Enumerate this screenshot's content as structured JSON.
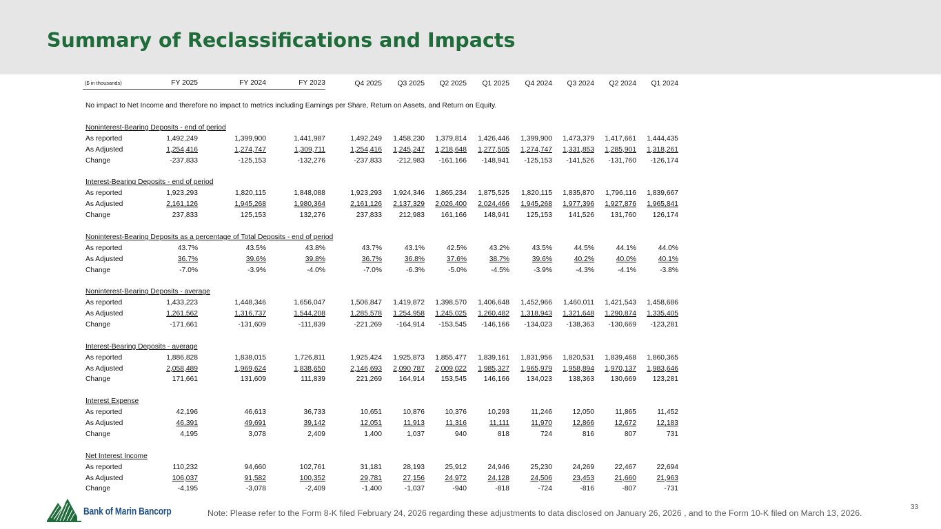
{
  "title": "Summary of Reclassifications and Impacts",
  "units": "($ in thousands)",
  "columns": [
    "FY 2025",
    "FY 2024",
    "FY 2023",
    "Q4 2025",
    "Q3 2025",
    "Q2 2025",
    "Q1 2025",
    "Q4 2024",
    "Q3 2024",
    "Q2 2024",
    "Q1 2024"
  ],
  "note_line": "No impact to Net Income and therefore no impact to metrics including Earnings per Share, Return on Assets, and Return on Equity.",
  "sections": [
    {
      "title": "Noninterest-Bearing Deposits - end of period",
      "rows": [
        {
          "label": "As reported",
          "values": [
            "1,492,249",
            "1,399,900",
            "1,441,987",
            "1,492,249",
            "1,458,230",
            "1,379,814",
            "1,426,446",
            "1,399,900",
            "1,473,379",
            "1,417,661",
            "1,444,435"
          ]
        },
        {
          "label": "As Adjusted",
          "values": [
            "1,254,416",
            "1,274,747",
            "1,309,711",
            "1,254,416",
            "1,245,247",
            "1,218,648",
            "1,277,505",
            "1,274,747",
            "1,331,853",
            "1,285,901",
            "1,318,261"
          ]
        },
        {
          "label": "Change",
          "values": [
            "-237,833",
            "-125,153",
            "-132,276",
            "-237,833",
            "-212,983",
            "-161,166",
            "-148,941",
            "-125,153",
            "-141,526",
            "-131,760",
            "-126,174"
          ]
        }
      ]
    },
    {
      "title": "Interest-Bearing Deposits - end of period",
      "rows": [
        {
          "label": "As reported",
          "values": [
            "1,923,293",
            "1,820,115",
            "1,848,088",
            "1,923,293",
            "1,924,346",
            "1,865,234",
            "1,875,525",
            "1,820,115",
            "1,835,870",
            "1,796,116",
            "1,839,667"
          ]
        },
        {
          "label": "As Adjusted",
          "values": [
            "2,161,126",
            "1,945,268",
            "1,980,364",
            "2,161,126",
            "2,137,329",
            "2,026,400",
            "2,024,466",
            "1,945,268",
            "1,977,396",
            "1,927,876",
            "1,965,841"
          ]
        },
        {
          "label": "Change",
          "values": [
            "237,833",
            "125,153",
            "132,276",
            "237,833",
            "212,983",
            "161,166",
            "148,941",
            "125,153",
            "141,526",
            "131,760",
            "126,174"
          ]
        }
      ]
    },
    {
      "title": "Noninterest-Bearing Deposits as a percentage of Total Deposits - end of period",
      "rows": [
        {
          "label": "As reported",
          "values": [
            "43.7%",
            "43.5%",
            "43.8%",
            "43.7%",
            "43.1%",
            "42.5%",
            "43.2%",
            "43.5%",
            "44.5%",
            "44.1%",
            "44.0%"
          ]
        },
        {
          "label": "As Adjusted",
          "values": [
            "36.7%",
            "39.6%",
            "39.8%",
            "36.7%",
            "36.8%",
            "37.6%",
            "38.7%",
            "39.6%",
            "40.2%",
            "40.0%",
            "40.1%"
          ]
        },
        {
          "label": "Change",
          "values": [
            "-7.0%",
            "-3.9%",
            "-4.0%",
            "-7.0%",
            "-6.3%",
            "-5.0%",
            "-4.5%",
            "-3.9%",
            "-4.3%",
            "-4.1%",
            "-3.8%"
          ]
        }
      ]
    },
    {
      "title": "Noninterest-Bearing Deposits - average",
      "rows": [
        {
          "label": "As reported",
          "values": [
            "1,433,223",
            "1,448,346",
            "1,656,047",
            "1,506,847",
            "1,419,872",
            "1,398,570",
            "1,406,648",
            "1,452,966",
            "1,460,011",
            "1,421,543",
            "1,458,686"
          ]
        },
        {
          "label": "As Adjusted",
          "values": [
            "1,261,562",
            "1,316,737",
            "1,544,208",
            "1,285,578",
            "1,254,958",
            "1,245,025",
            "1,260,482",
            "1,318,943",
            "1,321,648",
            "1,290,874",
            "1,335,405"
          ]
        },
        {
          "label": "Change",
          "values": [
            "-171,661",
            "-131,609",
            "-111,839",
            "-221,269",
            "-164,914",
            "-153,545",
            "-146,166",
            "-134,023",
            "-138,363",
            "-130,669",
            "-123,281"
          ]
        }
      ]
    },
    {
      "title": "Interest-Bearing Deposits - average",
      "rows": [
        {
          "label": "As reported",
          "values": [
            "1,886,828",
            "1,838,015",
            "1,726,811",
            "1,925,424",
            "1,925,873",
            "1,855,477",
            "1,839,161",
            "1,831,956",
            "1,820,531",
            "1,839,468",
            "1,860,365"
          ]
        },
        {
          "label": "As Adjusted",
          "values": [
            "2,058,489",
            "1,969,624",
            "1,838,650",
            "2,146,693",
            "2,090,787",
            "2,009,022",
            "1,985,327",
            "1,965,979",
            "1,958,894",
            "1,970,137",
            "1,983,646"
          ]
        },
        {
          "label": "Change",
          "values": [
            "171,661",
            "131,609",
            "111,839",
            "221,269",
            "164,914",
            "153,545",
            "146,166",
            "134,023",
            "138,363",
            "130,669",
            "123,281"
          ]
        }
      ]
    },
    {
      "title": "Interest Expense",
      "rows": [
        {
          "label": "As reported",
          "values": [
            "42,196",
            "46,613",
            "36,733",
            "10,651",
            "10,876",
            "10,376",
            "10,293",
            "11,246",
            "12,050",
            "11,865",
            "11,452"
          ]
        },
        {
          "label": "As Adjusted",
          "values": [
            "46,391",
            "49,691",
            "39,142",
            "12,051",
            "11,913",
            "11,316",
            "11,111",
            "11,970",
            "12,866",
            "12,672",
            "12,183"
          ]
        },
        {
          "label": "Change",
          "values": [
            "4,195",
            "3,078",
            "2,409",
            "1,400",
            "1,037",
            "940",
            "818",
            "724",
            "816",
            "807",
            "731"
          ]
        }
      ]
    },
    {
      "title": "Net Interest Income",
      "rows": [
        {
          "label": "As reported",
          "values": [
            "110,232",
            "94,660",
            "102,761",
            "31,181",
            "28,193",
            "25,912",
            "24,946",
            "25,230",
            "24,269",
            "22,467",
            "22,694"
          ]
        },
        {
          "label": "As Adjusted",
          "values": [
            "106,037",
            "91,582",
            "100,352",
            "29,781",
            "27,156",
            "24,972",
            "24,128",
            "24,506",
            "23,453",
            "21,660",
            "21,963"
          ]
        },
        {
          "label": "Change",
          "values": [
            "-4,195",
            "-3,078",
            "-2,409",
            "-1,400",
            "-1,037",
            "-940",
            "-818",
            "-724",
            "-816",
            "-807",
            "-731"
          ]
        }
      ]
    }
  ],
  "logo_text": "Bank of Marin Bancorp",
  "logo_icon": "tree-mountain-logo-icon",
  "brand_color": "#1f6b3a",
  "logo_color": "#1f4f8a",
  "footnote": "Note: Please refer to the Form 8-K filed February 24, 2026 regarding these adjustments to data disclosed on January 26, 2026 , and to the Form 10-K filed on March 13, 2026.",
  "page_number": "33"
}
